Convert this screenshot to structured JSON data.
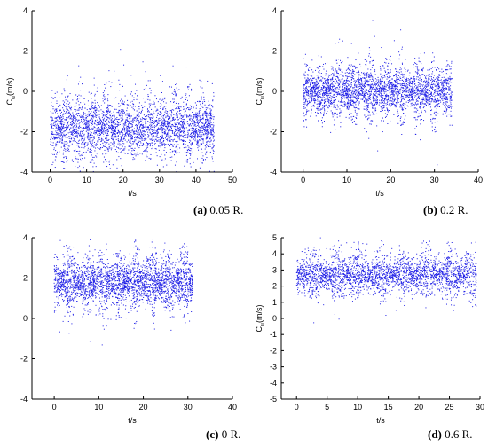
{
  "chart_data": [
    {
      "type": "scatter",
      "panel": "a",
      "caption_letter": "(a)",
      "caption_text": " 0.05 R.",
      "xlabel": "t/s",
      "ylabel_main": "C",
      "ylabel_sub": "u",
      "ylabel_unit": "(m/s)",
      "xlim": [
        -5,
        50
      ],
      "ylim": [
        -4,
        4
      ],
      "xticks": [
        0,
        10,
        20,
        30,
        40,
        50
      ],
      "yticks": [
        -4,
        -2,
        0,
        2,
        4
      ],
      "data_x_range": [
        0,
        45
      ],
      "mean": -1.8,
      "spread": 0.9,
      "point_count": 3200,
      "color": "#1e1ee6"
    },
    {
      "type": "scatter",
      "panel": "b",
      "caption_letter": "(b)",
      "caption_text": " 0.2 R.",
      "xlabel": "t/s",
      "ylabel_main": "C",
      "ylabel_sub": "u",
      "ylabel_unit": "(m/s)",
      "xlim": [
        -5,
        40
      ],
      "ylim": [
        -4,
        4
      ],
      "xticks": [
        0,
        10,
        20,
        30,
        40
      ],
      "yticks": [
        -4,
        -2,
        0,
        2,
        4
      ],
      "data_x_range": [
        0,
        34
      ],
      "mean": 0.0,
      "spread": 0.75,
      "point_count": 3000,
      "color": "#1e1ee6"
    },
    {
      "type": "scatter",
      "panel": "c",
      "caption_letter": "(c)",
      "caption_text": " 0 R.",
      "xlabel": "t/s",
      "ylabel_main": "",
      "ylabel_sub": "",
      "ylabel_unit": "",
      "xlim": [
        -5,
        40
      ],
      "ylim": [
        -4,
        4
      ],
      "xticks": [
        0,
        10,
        20,
        30,
        40
      ],
      "yticks": [
        -4,
        -2,
        0,
        2,
        4
      ],
      "data_x_range": [
        0,
        31
      ],
      "mean": 1.8,
      "spread": 0.75,
      "point_count": 2900,
      "color": "#1e1ee6"
    },
    {
      "type": "scatter",
      "panel": "d",
      "caption_letter": "(d)",
      "caption_text": " 0.6 R.",
      "xlabel": "t/s",
      "ylabel_main": "C",
      "ylabel_sub": "u",
      "ylabel_unit": "(m/s)",
      "xlim": [
        -2.5,
        30
      ],
      "ylim": [
        -5,
        5
      ],
      "xticks": [
        0,
        5,
        10,
        15,
        20,
        25,
        30
      ],
      "yticks": [
        -5,
        -4,
        -3,
        -2,
        -1,
        0,
        1,
        2,
        3,
        4,
        5
      ],
      "data_x_range": [
        0,
        29.5
      ],
      "mean": 2.7,
      "spread": 0.75,
      "point_count": 2800,
      "color": "#1e1ee6"
    }
  ]
}
